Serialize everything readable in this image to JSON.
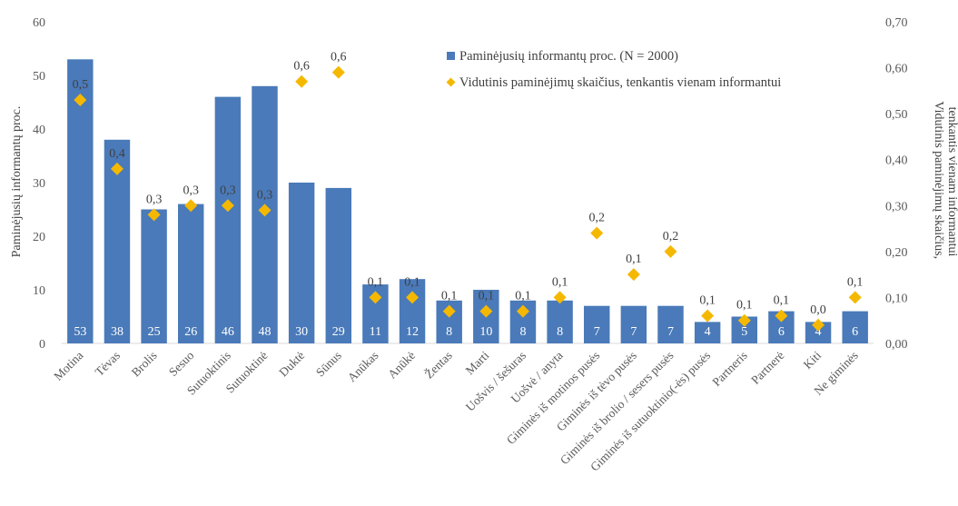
{
  "chart_data": {
    "type": "bar",
    "categories": [
      "Motina",
      "Tėvas",
      "Brolis",
      "Sesuo",
      "Sutuoktinis",
      "Sutuoktinė",
      "Duktė",
      "Sūnus",
      "Anūkas",
      "Anūkė",
      "Žentas",
      "Marti",
      "Uošvis / šešuras",
      "Uošvė / anyta",
      "Giminės iš motinos pusės",
      "Giminės iš tėvo pusės",
      "Giminės iš brolio / sesers pusės",
      "Giminės iš sutuoktinio(-ės) pusės",
      "Partneris",
      "Partnerė",
      "Kiti",
      "Ne giminės"
    ],
    "series": [
      {
        "name": "Paminėjusių informantų proc. (N = 2000)",
        "type": "bar",
        "axis": "left",
        "color": "#4a7ab9",
        "values": [
          53,
          38,
          25,
          26,
          46,
          48,
          30,
          29,
          11,
          12,
          8,
          10,
          8,
          8,
          7,
          7,
          7,
          4,
          5,
          6,
          4,
          6
        ],
        "labels": [
          "53",
          "38",
          "25",
          "26",
          "46",
          "48",
          "30",
          "29",
          "11",
          "12",
          "8",
          "10",
          "8",
          "8",
          "7",
          "7",
          "7",
          "4",
          "5",
          "6",
          "4",
          "6"
        ]
      },
      {
        "name": "Vidutinis paminėjimų skaičius, tenkantis vienam informantui",
        "type": "scatter",
        "axis": "right",
        "color": "#f5b800",
        "values": [
          0.53,
          0.38,
          0.28,
          0.3,
          0.3,
          0.29,
          0.57,
          0.59,
          0.1,
          0.1,
          0.07,
          0.07,
          0.07,
          0.1,
          0.24,
          0.15,
          0.2,
          0.06,
          0.05,
          0.06,
          0.04,
          0.1
        ],
        "labels": [
          "0,5",
          "0,4",
          "0,3",
          "0,3",
          "0,3",
          "0,3",
          "0,6",
          "0,6",
          "0,1",
          "0,1",
          "0,1",
          "0,1",
          "0,1",
          "0,1",
          "0,2",
          "0,1",
          "0,2",
          "0,1",
          "0,1",
          "0,1",
          "0,0",
          "0,1"
        ]
      }
    ],
    "ylabel": "Paminėjusių informantų proc.",
    "y2label_lines": [
      "Vidutinis  paminėjimų skaičius,",
      "tenkantis vienam informantui"
    ],
    "ylim": [
      0,
      60
    ],
    "y2lim": [
      0,
      0.7
    ],
    "yticks": [
      "0",
      "10",
      "20",
      "30",
      "40",
      "50",
      "60"
    ],
    "y2ticks": [
      "0,00",
      "0,10",
      "0,20",
      "0,30",
      "0,40",
      "0,50",
      "0,60",
      "0,70"
    ],
    "grid": false,
    "legend_position": "top-right"
  }
}
